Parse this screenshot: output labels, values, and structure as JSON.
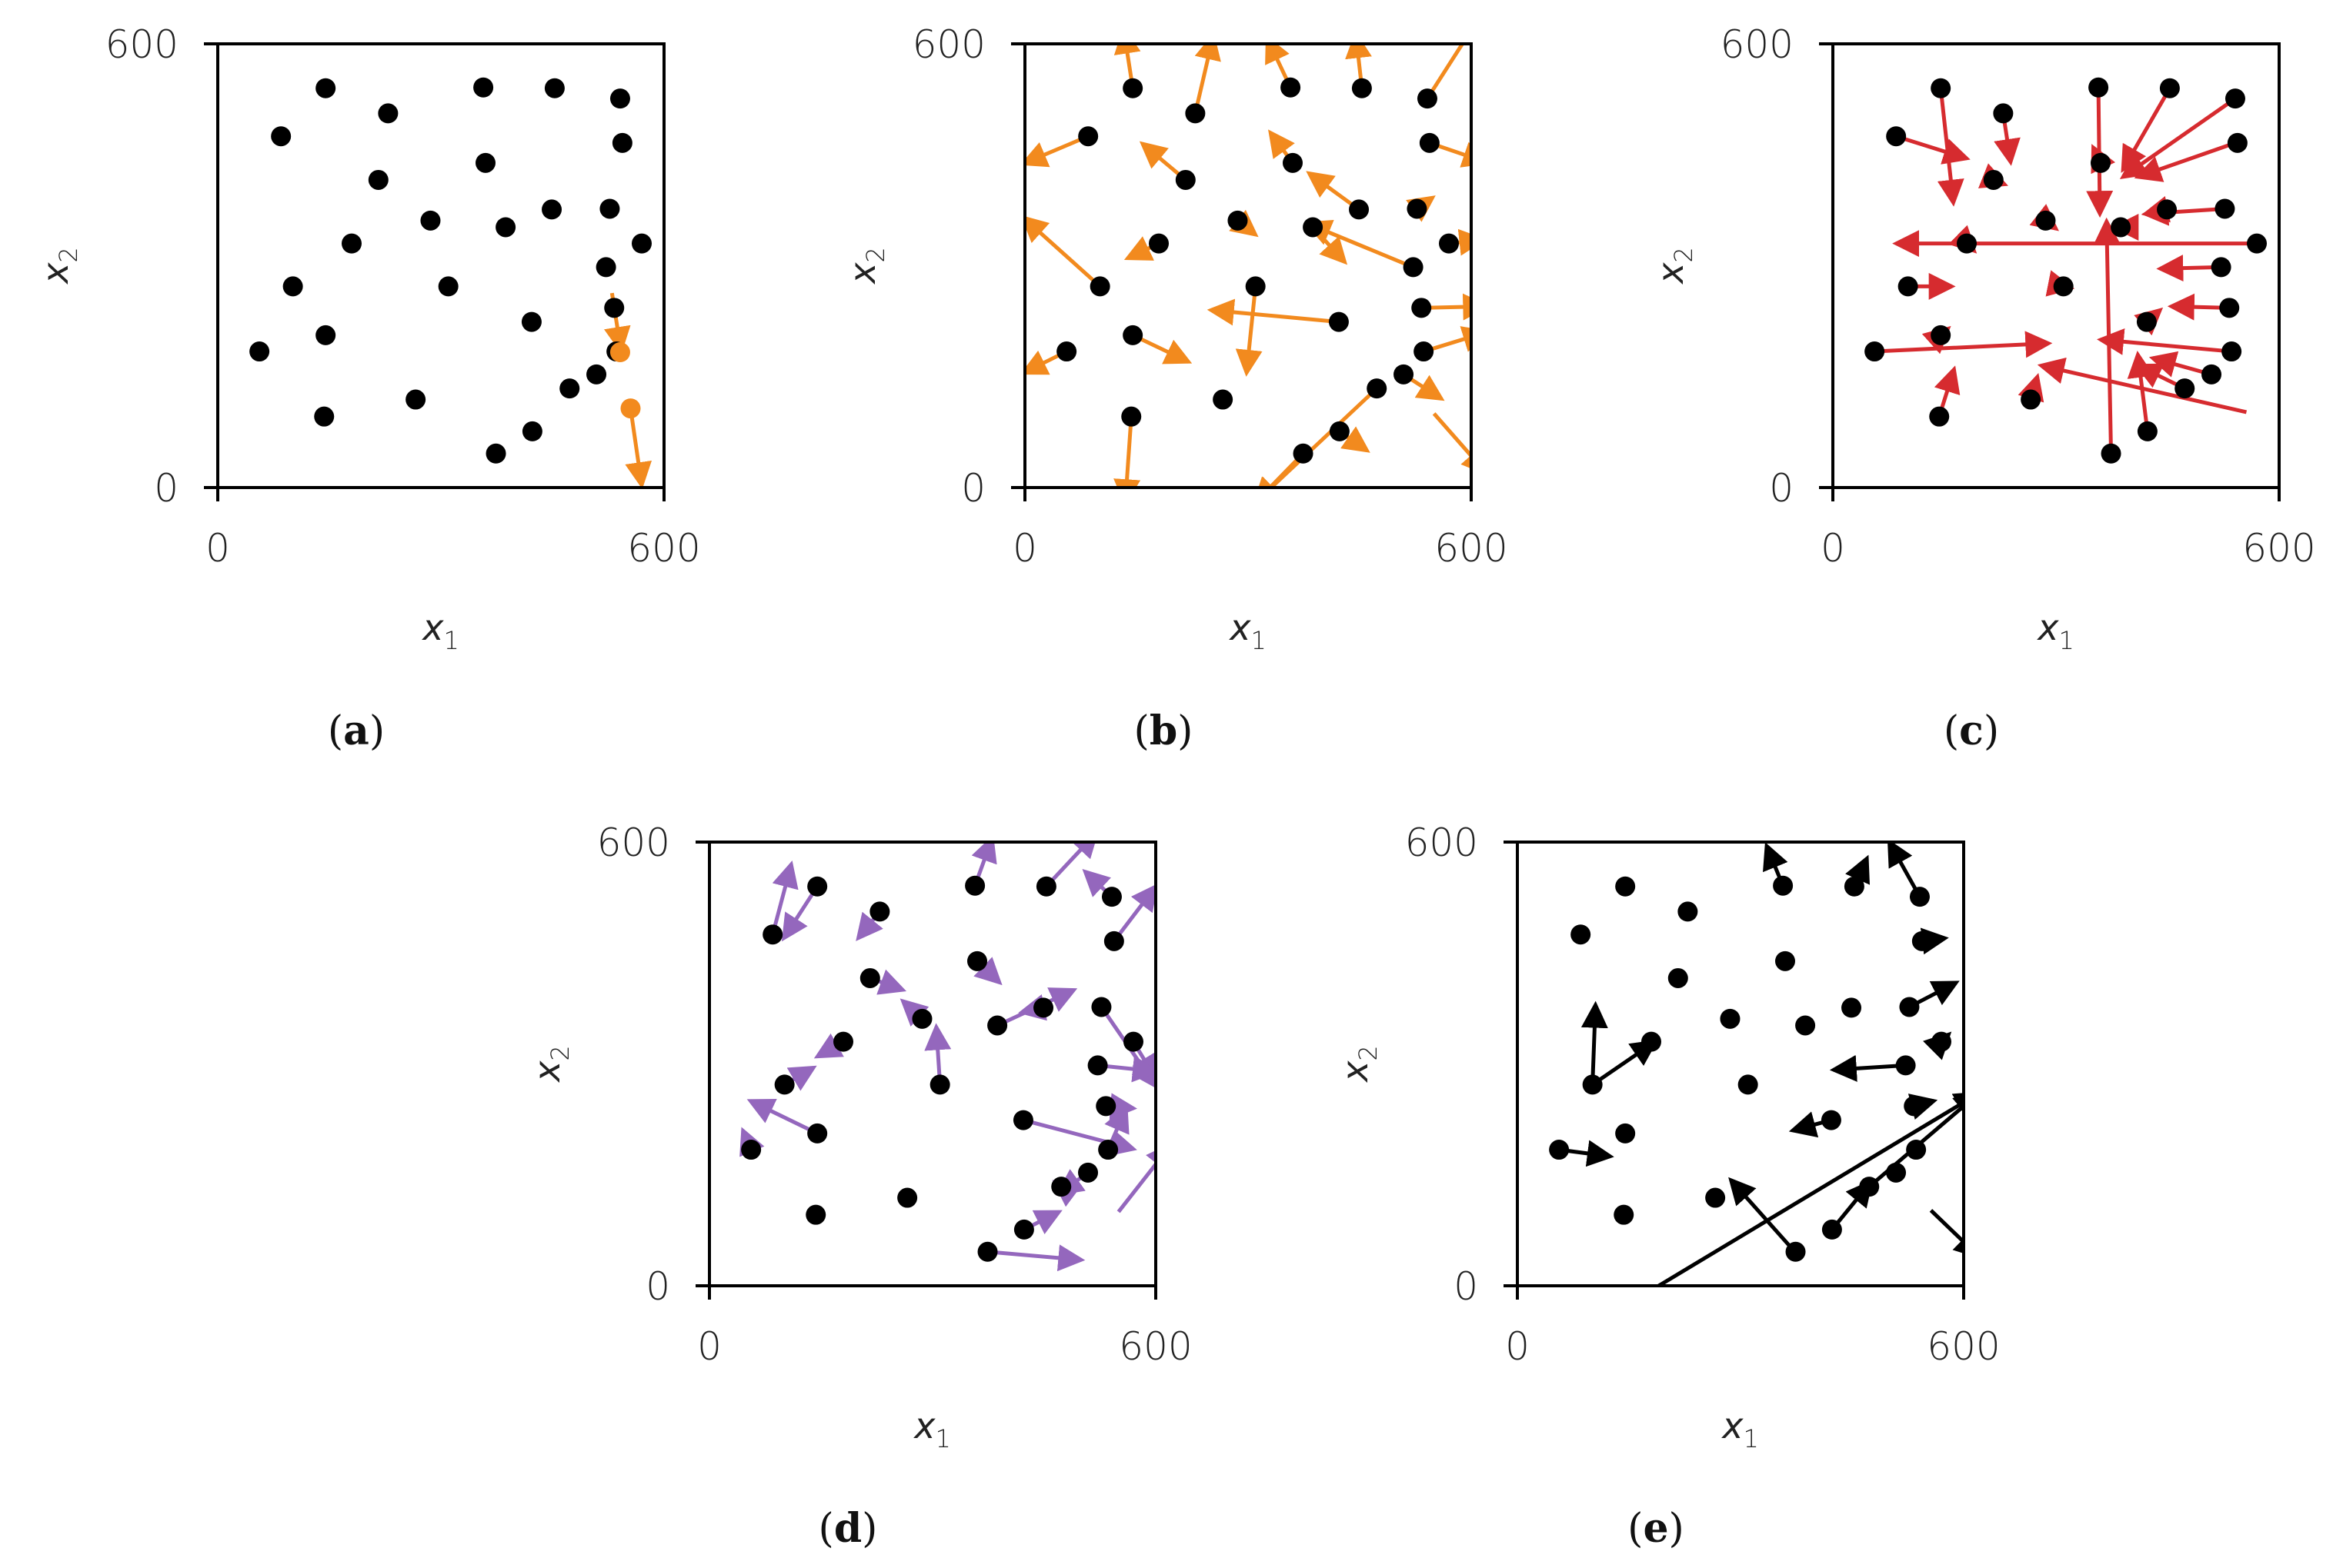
{
  "colors": {
    "orange": "#f28a1e",
    "red": "#d62b2f",
    "purple": "#9467bd",
    "black": "#000000"
  },
  "points": [
    [
      145,
      540
    ],
    [
      85,
      475
    ],
    [
      229,
      506
    ],
    [
      357,
      541
    ],
    [
      453,
      540
    ],
    [
      541,
      526
    ],
    [
      544,
      466
    ],
    [
      216,
      416
    ],
    [
      360,
      439
    ],
    [
      286,
      361
    ],
    [
      387,
      352
    ],
    [
      449,
      376
    ],
    [
      527,
      377
    ],
    [
      180,
      330
    ],
    [
      570,
      330
    ],
    [
      101,
      272
    ],
    [
      310,
      272
    ],
    [
      522,
      298
    ],
    [
      533,
      243
    ],
    [
      422,
      224
    ],
    [
      145,
      206
    ],
    [
      56,
      184
    ],
    [
      536,
      184
    ],
    [
      509,
      153
    ],
    [
      473,
      134
    ],
    [
      266,
      119
    ],
    [
      143,
      96
    ],
    [
      423,
      76
    ],
    [
      374,
      46
    ]
  ],
  "chart_data": [
    {
      "panel": "a",
      "type": "scatter",
      "caption": "(a)",
      "xlabel": "x1",
      "ylabel": "x2",
      "xlim": [
        0,
        600
      ],
      "ylim": [
        0,
        600
      ],
      "xticks": [
        "0",
        "600"
      ],
      "yticks": [
        "0",
        "600"
      ],
      "highlight_color": "orange",
      "highlight_points": [
        [
          541,
          183
        ],
        [
          555,
          107
        ]
      ],
      "arrows": [
        [
          530,
          263,
          542,
          186
        ],
        [
          555,
          107,
          570,
          3
        ]
      ]
    },
    {
      "panel": "b",
      "type": "vector",
      "caption": "(b)",
      "xlabel": "x1",
      "ylabel": "x2",
      "xlim": [
        0,
        600
      ],
      "ylim": [
        0,
        600
      ],
      "xticks": [
        "0",
        "600"
      ],
      "yticks": [
        "0",
        "600"
      ],
      "arrow_color": "orange",
      "arrows": [
        [
          145,
          540,
          133,
          618
        ],
        [
          85,
          475,
          -2,
          438
        ],
        [
          229,
          506,
          253,
          610
        ],
        [
          357,
          541,
          326,
          607
        ],
        [
          453,
          540,
          445,
          612
        ],
        [
          541,
          526,
          620,
          650
        ],
        [
          544,
          466,
          620,
          440
        ],
        [
          216,
          416,
          158,
          465
        ],
        [
          360,
          439,
          330,
          480
        ],
        [
          286,
          361,
          310,
          342
        ],
        [
          387,
          352,
          430,
          305
        ],
        [
          449,
          376,
          382,
          425
        ],
        [
          527,
          377,
          548,
          392
        ],
        [
          180,
          330,
          138,
          310
        ],
        [
          570,
          330,
          615,
          335
        ],
        [
          101,
          272,
          -2,
          365
        ],
        [
          310,
          272,
          298,
          155
        ],
        [
          522,
          298,
          380,
          357
        ],
        [
          533,
          243,
          620,
          245
        ],
        [
          422,
          224,
          250,
          240
        ],
        [
          145,
          206,
          220,
          170
        ],
        [
          56,
          184,
          -2,
          155
        ],
        [
          536,
          184,
          620,
          210
        ],
        [
          509,
          153,
          560,
          120
        ],
        [
          473,
          134,
          310,
          -20
        ],
        [
          143,
          96,
          135,
          -20
        ],
        [
          423,
          76,
          460,
          50
        ],
        [
          374,
          46,
          310,
          -20
        ],
        [
          550,
          100,
          620,
          20
        ]
      ]
    },
    {
      "panel": "c",
      "type": "vector",
      "caption": "(c)",
      "xlabel": "x1",
      "ylabel": "x2",
      "xlim": [
        0,
        600
      ],
      "ylim": [
        0,
        600
      ],
      "xticks": [
        "0",
        "600"
      ],
      "yticks": [
        "0",
        "600"
      ],
      "arrow_color": "red",
      "arrows": [
        [
          145,
          540,
          162,
          385
        ],
        [
          85,
          475,
          180,
          445
        ],
        [
          229,
          506,
          239,
          440
        ],
        [
          357,
          541,
          359,
          370
        ],
        [
          453,
          540,
          390,
          430
        ],
        [
          541,
          526,
          390,
          420
        ],
        [
          541,
          466,
          410,
          420
        ],
        [
          216,
          416,
          231,
          410
        ],
        [
          360,
          439,
          350,
          460
        ],
        [
          286,
          361,
          300,
          350
        ],
        [
          387,
          352,
          380,
          352
        ],
        [
          449,
          376,
          420,
          370
        ],
        [
          527,
          377,
          420,
          370
        ],
        [
          180,
          330,
          190,
          320
        ],
        [
          570,
          330,
          85,
          330
        ],
        [
          101,
          272,
          160,
          272
        ],
        [
          310,
          272,
          320,
          270
        ],
        [
          522,
          298,
          440,
          296
        ],
        [
          533,
          243,
          455,
          245
        ],
        [
          422,
          224,
          440,
          240
        ],
        [
          145,
          206,
          155,
          215
        ],
        [
          56,
          184,
          290,
          195
        ],
        [
          536,
          184,
          360,
          200
        ],
        [
          509,
          153,
          430,
          175
        ],
        [
          473,
          134,
          410,
          165
        ],
        [
          266,
          119,
          275,
          150
        ],
        [
          143,
          96,
          163,
          160
        ],
        [
          423,
          76,
          410,
          180
        ],
        [
          374,
          46,
          368,
          360
        ],
        [
          556,
          102,
          280,
          165
        ]
      ]
    },
    {
      "panel": "d",
      "type": "vector",
      "caption": "(d)",
      "xlabel": "x1",
      "ylabel": "x2",
      "xlim": [
        0,
        600
      ],
      "ylim": [
        0,
        600
      ],
      "xticks": [
        "0",
        "600"
      ],
      "yticks": [
        "0",
        "600"
      ],
      "arrow_color": "purple",
      "arrows": [
        [
          145,
          540,
          100,
          470
        ],
        [
          85,
          475,
          110,
          570
        ],
        [
          229,
          506,
          200,
          470
        ],
        [
          357,
          541,
          380,
          605
        ],
        [
          453,
          540,
          520,
          612
        ],
        [
          541,
          526,
          505,
          560
        ],
        [
          544,
          466,
          600,
          540
        ],
        [
          216,
          416,
          260,
          400
        ],
        [
          360,
          439,
          390,
          410
        ],
        [
          286,
          361,
          260,
          385
        ],
        [
          387,
          352,
          490,
          400
        ],
        [
          449,
          376,
          420,
          370
        ],
        [
          527,
          377,
          600,
          270
        ],
        [
          180,
          330,
          145,
          310
        ],
        [
          570,
          330,
          600,
          280
        ],
        [
          101,
          272,
          140,
          295
        ],
        [
          310,
          272,
          305,
          350
        ],
        [
          522,
          298,
          600,
          290
        ],
        [
          533,
          243,
          570,
          240
        ],
        [
          422,
          224,
          570,
          185
        ],
        [
          145,
          206,
          55,
          250
        ],
        [
          56,
          184,
          45,
          210
        ],
        [
          536,
          184,
          560,
          240
        ],
        [
          509,
          153,
          470,
          125
        ],
        [
          473,
          134,
          465,
          140
        ],
        [
          374,
          46,
          500,
          35
        ],
        [
          423,
          76,
          470,
          100
        ],
        [
          550,
          100,
          620,
          190
        ]
      ]
    },
    {
      "panel": "e",
      "type": "vector",
      "caption": "(e)",
      "xlabel": "x1",
      "ylabel": "x2",
      "xlim": [
        0,
        600
      ],
      "ylim": [
        0,
        600
      ],
      "xticks": [
        "0",
        "600"
      ],
      "yticks": [
        "0",
        "600"
      ],
      "arrow_color": "black",
      "arrows": [
        [
          357,
          541,
          335,
          595
        ],
        [
          453,
          540,
          470,
          578
        ],
        [
          541,
          526,
          500,
          600
        ],
        [
          544,
          466,
          575,
          470
        ],
        [
          101,
          272,
          105,
          380
        ],
        [
          101,
          272,
          185,
          330
        ],
        [
          527,
          377,
          590,
          410
        ],
        [
          570,
          330,
          580,
          340
        ],
        [
          522,
          298,
          425,
          292
        ],
        [
          422,
          224,
          370,
          210
        ],
        [
          533,
          243,
          560,
          250
        ],
        [
          56,
          184,
          125,
          175
        ],
        [
          373,
          46,
          287,
          143
        ],
        [
          423,
          76,
          475,
          140
        ],
        [
          556,
          102,
          620,
          40
        ],
        [
          473,
          134,
          620,
          260
        ],
        [
          190,
          0,
          620,
          260
        ]
      ]
    }
  ]
}
